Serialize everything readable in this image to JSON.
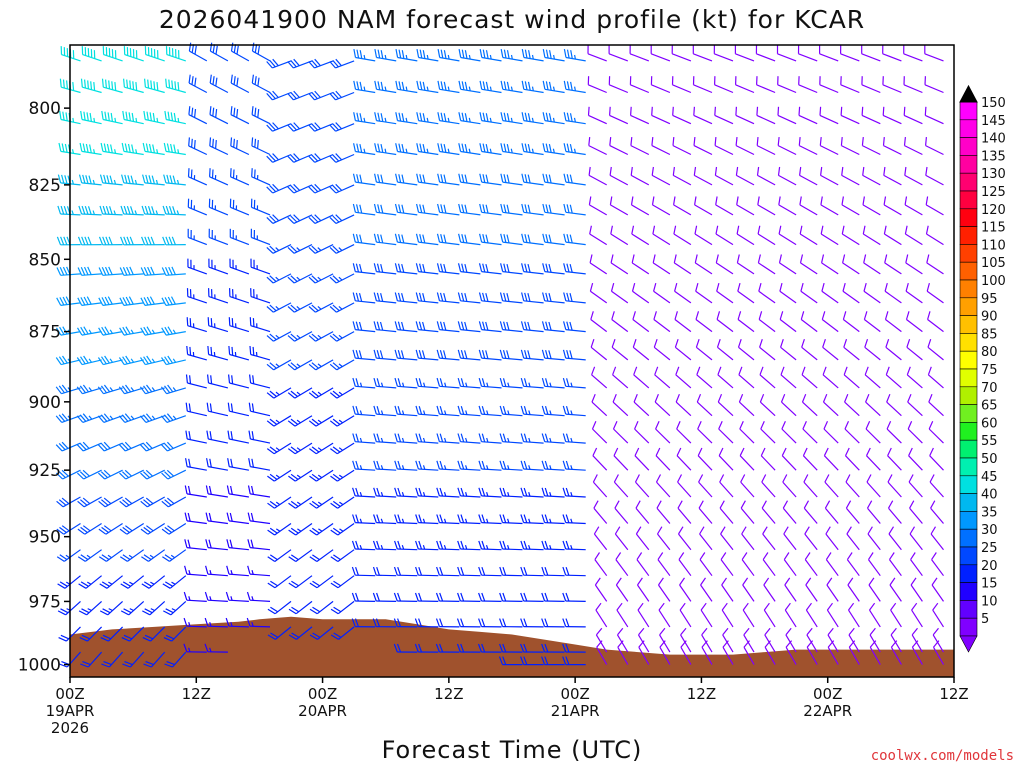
{
  "chart_data": {
    "type": "wind_barb_time_height",
    "title": "2026041900 NAM forecast wind profile (kt) for KCAR",
    "xlabel": "Forecast Time (UTC)",
    "ylabel": "",
    "credit": "coolwx.com/models",
    "x_range_hours": [
      0,
      84
    ],
    "y_range_hPa": [
      1005,
      780
    ],
    "y_scale": "log-pressure",
    "y_ticks": [
      "800",
      "825",
      "850",
      "875",
      "900",
      "925",
      "950",
      "975",
      "1000"
    ],
    "x_ticks": [
      {
        "hour": 0,
        "lines": [
          "00Z",
          "19APR",
          "2026"
        ]
      },
      {
        "hour": 12,
        "lines": [
          "12Z"
        ]
      },
      {
        "hour": 24,
        "lines": [
          "00Z",
          "20APR"
        ]
      },
      {
        "hour": 36,
        "lines": [
          "12Z"
        ]
      },
      {
        "hour": 48,
        "lines": [
          "00Z",
          "21APR"
        ]
      },
      {
        "hour": 60,
        "lines": [
          "12Z"
        ]
      },
      {
        "hour": 72,
        "lines": [
          "00Z",
          "22APR"
        ]
      },
      {
        "hour": 84,
        "lines": [
          "12Z"
        ]
      }
    ],
    "colorbar": {
      "unit": "kt",
      "levels": [
        "5",
        "10",
        "15",
        "20",
        "25",
        "30",
        "35",
        "40",
        "45",
        "50",
        "55",
        "60",
        "65",
        "70",
        "75",
        "80",
        "85",
        "90",
        "95",
        "100",
        "105",
        "110",
        "115",
        "120",
        "125",
        "130",
        "135",
        "140",
        "145",
        "150"
      ],
      "colors": [
        "#8000ff",
        "#6200ff",
        "#2000ff",
        "#0020ff",
        "#0048ff",
        "#0070ff",
        "#0098ff",
        "#00b8f0",
        "#00e0e0",
        "#00f0b0",
        "#00f070",
        "#20f020",
        "#70f020",
        "#b0f000",
        "#e0ff00",
        "#ffff00",
        "#ffe000",
        "#ffc000",
        "#ffa000",
        "#ff8000",
        "#ff6000",
        "#ff4000",
        "#ff2000",
        "#ff0010",
        "#ff0040",
        "#ff0070",
        "#ff00a0",
        "#ff00c8",
        "#ff00e8",
        "#ff00ff"
      ]
    },
    "terrain_color": "#a0522d",
    "terrain_surface_pressure": [
      {
        "hour": 0,
        "hPa": 988
      },
      {
        "hour": 4,
        "hPa": 986
      },
      {
        "hour": 8,
        "hPa": 985
      },
      {
        "hour": 12,
        "hPa": 984
      },
      {
        "hour": 16,
        "hPa": 983
      },
      {
        "hour": 18,
        "hPa": 982
      },
      {
        "hour": 21,
        "hPa": 981
      },
      {
        "hour": 24,
        "hPa": 982
      },
      {
        "hour": 27,
        "hPa": 982
      },
      {
        "hour": 30,
        "hPa": 982
      },
      {
        "hour": 33,
        "hPa": 984
      },
      {
        "hour": 36,
        "hPa": 986
      },
      {
        "hour": 39,
        "hPa": 987
      },
      {
        "hour": 42,
        "hPa": 988
      },
      {
        "hour": 45,
        "hPa": 990
      },
      {
        "hour": 48,
        "hPa": 992
      },
      {
        "hour": 51,
        "hPa": 994
      },
      {
        "hour": 54,
        "hPa": 995
      },
      {
        "hour": 57,
        "hPa": 996
      },
      {
        "hour": 60,
        "hPa": 996
      },
      {
        "hour": 63,
        "hPa": 996
      },
      {
        "hour": 66,
        "hPa": 995
      },
      {
        "hour": 69,
        "hPa": 994
      },
      {
        "hour": 72,
        "hPa": 994
      },
      {
        "hour": 78,
        "hPa": 994
      },
      {
        "hour": 84,
        "hPa": 994
      }
    ],
    "barb_levels_hPa": [
      785,
      795,
      805,
      815,
      825,
      835,
      845,
      855,
      865,
      875,
      885,
      895,
      905,
      915,
      925,
      935,
      945,
      955,
      965,
      975,
      985,
      995,
      1000
    ],
    "barb_times_hours": [
      1,
      3,
      5,
      7,
      9,
      11,
      13,
      15,
      17,
      19,
      21,
      23,
      25,
      27,
      29,
      31,
      33,
      35,
      37,
      39,
      41,
      43,
      45,
      47,
      49,
      51,
      53,
      55,
      57,
      59,
      61,
      63,
      65,
      67,
      69,
      71,
      73,
      75,
      77,
      79,
      81,
      83
    ],
    "wind_regimes": [
      {
        "hours": "0-12",
        "aloft_kt": 50,
        "low_kt": 20,
        "aloft_dir_deg": 290,
        "low_dir_deg": 220
      },
      {
        "hours": "12-20",
        "aloft_kt": 30,
        "low_kt": 15,
        "aloft_dir_deg": 300,
        "low_dir_deg": 270
      },
      {
        "hours": "21-27",
        "aloft_kt": 30,
        "low_kt": 20,
        "aloft_dir_deg": 250,
        "low_dir_deg": 230
      },
      {
        "hours": "28-50",
        "aloft_kt": 35,
        "low_kt": 20,
        "aloft_dir_deg": 280,
        "low_dir_deg": 270
      },
      {
        "hours": "50-84",
        "aloft_kt": 10,
        "low_kt": 8,
        "aloft_dir_deg": 290,
        "low_dir_deg": 330
      }
    ]
  }
}
